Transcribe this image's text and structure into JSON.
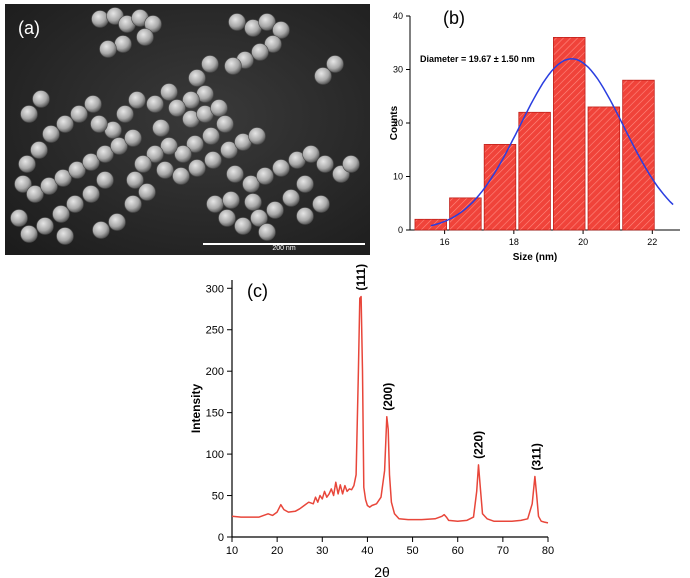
{
  "panels": {
    "a": {
      "label": "(a)",
      "scale_bar_label": "200 nm"
    },
    "b": {
      "label": "(b)"
    },
    "c": {
      "label": "(c)"
    }
  },
  "colors": {
    "bar_fill": "#f0433a",
    "fit_curve": "#2a3ee0",
    "xrd_line": "#e8463a",
    "sem_background": "#2b2b2b",
    "particle": "#c9c9c9"
  },
  "chart_data": [
    {
      "type": "bar",
      "panel": "(b)",
      "xlabel": "Size (nm)",
      "ylabel": "Counts",
      "annotation": "Diameter = 19.67 ± 1.50 nm",
      "bin_width": 1,
      "bins": [
        {
          "center": 15.6,
          "count": 2
        },
        {
          "center": 16.6,
          "count": 6
        },
        {
          "center": 17.6,
          "count": 16
        },
        {
          "center": 18.6,
          "count": 22
        },
        {
          "center": 19.6,
          "count": 36
        },
        {
          "center": 20.6,
          "count": 23
        },
        {
          "center": 21.6,
          "count": 28
        }
      ],
      "fit": {
        "type": "gaussian",
        "mean": 19.67,
        "sigma": 1.5,
        "peak": 32,
        "x_range": [
          15.6,
          22.6
        ]
      },
      "xlim": [
        15,
        22.8
      ],
      "ylim": [
        0,
        40
      ],
      "xticks": [
        16,
        18,
        20,
        22
      ],
      "yticks": [
        0,
        10,
        20,
        30,
        40
      ],
      "bar_pattern": "hatched"
    },
    {
      "type": "line",
      "panel": "(c)",
      "xlabel": "2θ",
      "ylabel": "Intensity",
      "xlim": [
        10,
        80
      ],
      "ylim": [
        0,
        310
      ],
      "xticks": [
        10,
        20,
        30,
        40,
        50,
        60,
        70,
        80
      ],
      "yticks": [
        0,
        50,
        100,
        150,
        200,
        250,
        300
      ],
      "series": [
        {
          "x": [
            10,
            12,
            14,
            16,
            17,
            18,
            19,
            20,
            20.8,
            21.5,
            22.5,
            24,
            25,
            26,
            27,
            28,
            28.5,
            29,
            29.5,
            30,
            30.5,
            31,
            31.5,
            32,
            32.5,
            33,
            33.5,
            34,
            34.5,
            35,
            35.5,
            36,
            36.5,
            37,
            37.5,
            38,
            38.3,
            38.6,
            38.9,
            39.2,
            39.6,
            40,
            40.5,
            41,
            42,
            43,
            43.8,
            44.3,
            44.6,
            44.9,
            45.3,
            46,
            47,
            49,
            52,
            55,
            56.5,
            57,
            57.5,
            58,
            60,
            62,
            63.5,
            64.2,
            64.6,
            65,
            65.5,
            66.5,
            68,
            70,
            72,
            74,
            75.5,
            76.5,
            77.1,
            77.5,
            77.9,
            78.5,
            79.2,
            80
          ],
          "y": [
            25,
            24,
            24,
            24,
            26,
            28,
            26,
            30,
            39,
            33,
            30,
            31,
            34,
            38,
            42,
            40,
            48,
            42,
            50,
            46,
            55,
            48,
            52,
            58,
            50,
            66,
            52,
            63,
            52,
            62,
            55,
            58,
            57,
            62,
            75,
            200,
            288,
            290,
            200,
            60,
            45,
            38,
            36,
            38,
            40,
            48,
            80,
            145,
            130,
            75,
            42,
            28,
            22,
            21,
            21,
            22,
            25,
            27,
            24,
            20,
            19,
            20,
            24,
            55,
            87,
            60,
            28,
            22,
            19,
            19,
            19,
            20,
            22,
            40,
            73,
            50,
            25,
            19,
            18,
            17
          ]
        }
      ],
      "peak_labels": [
        {
          "label": "(111)",
          "x": 38.6,
          "y": 290
        },
        {
          "label": "(200)",
          "x": 44.6,
          "y": 145
        },
        {
          "label": "(220)",
          "x": 64.6,
          "y": 87
        },
        {
          "label": "(311)",
          "x": 77.5,
          "y": 73
        }
      ]
    }
  ]
}
